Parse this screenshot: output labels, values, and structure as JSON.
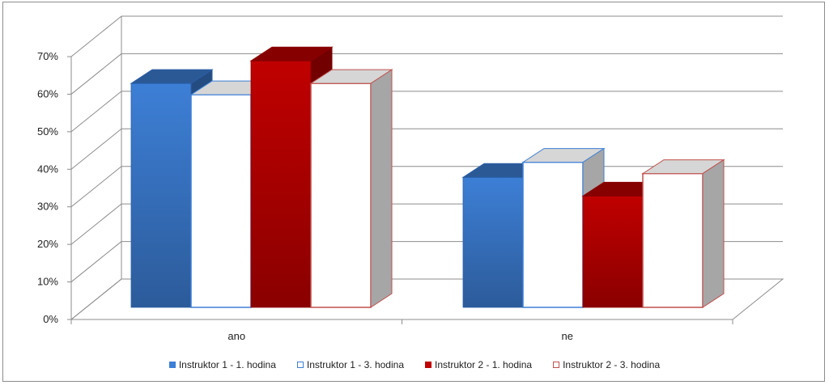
{
  "chart_data": {
    "type": "bar",
    "style": "3d-clustered-column",
    "categories": [
      "ano",
      "ne"
    ],
    "series": [
      {
        "name": "Instruktor 1 - 1. hodina",
        "values": [
          62,
          37
        ],
        "fill": "#3d7fd6",
        "edge": "#2a5ea8",
        "hollow": false
      },
      {
        "name": "Instruktor 1 - 3. hodina",
        "values": [
          59,
          41
        ],
        "fill": "#ffffff",
        "edge": "#3d7fd6",
        "hollow": true
      },
      {
        "name": "Instruktor 2 - 1. hodina",
        "values": [
          68,
          32
        ],
        "fill": "#c00000",
        "edge": "#8b0000",
        "hollow": false
      },
      {
        "name": "Instruktor 2 - 3. hodina",
        "values": [
          62,
          38
        ],
        "fill": "#ffffff",
        "edge": "#c0504d",
        "hollow": true
      }
    ],
    "yticks": [
      "0%",
      "10%",
      "20%",
      "30%",
      "40%",
      "50%",
      "60%",
      "70%"
    ],
    "ylim": [
      0,
      70
    ],
    "legend_position": "bottom",
    "grid": true
  }
}
